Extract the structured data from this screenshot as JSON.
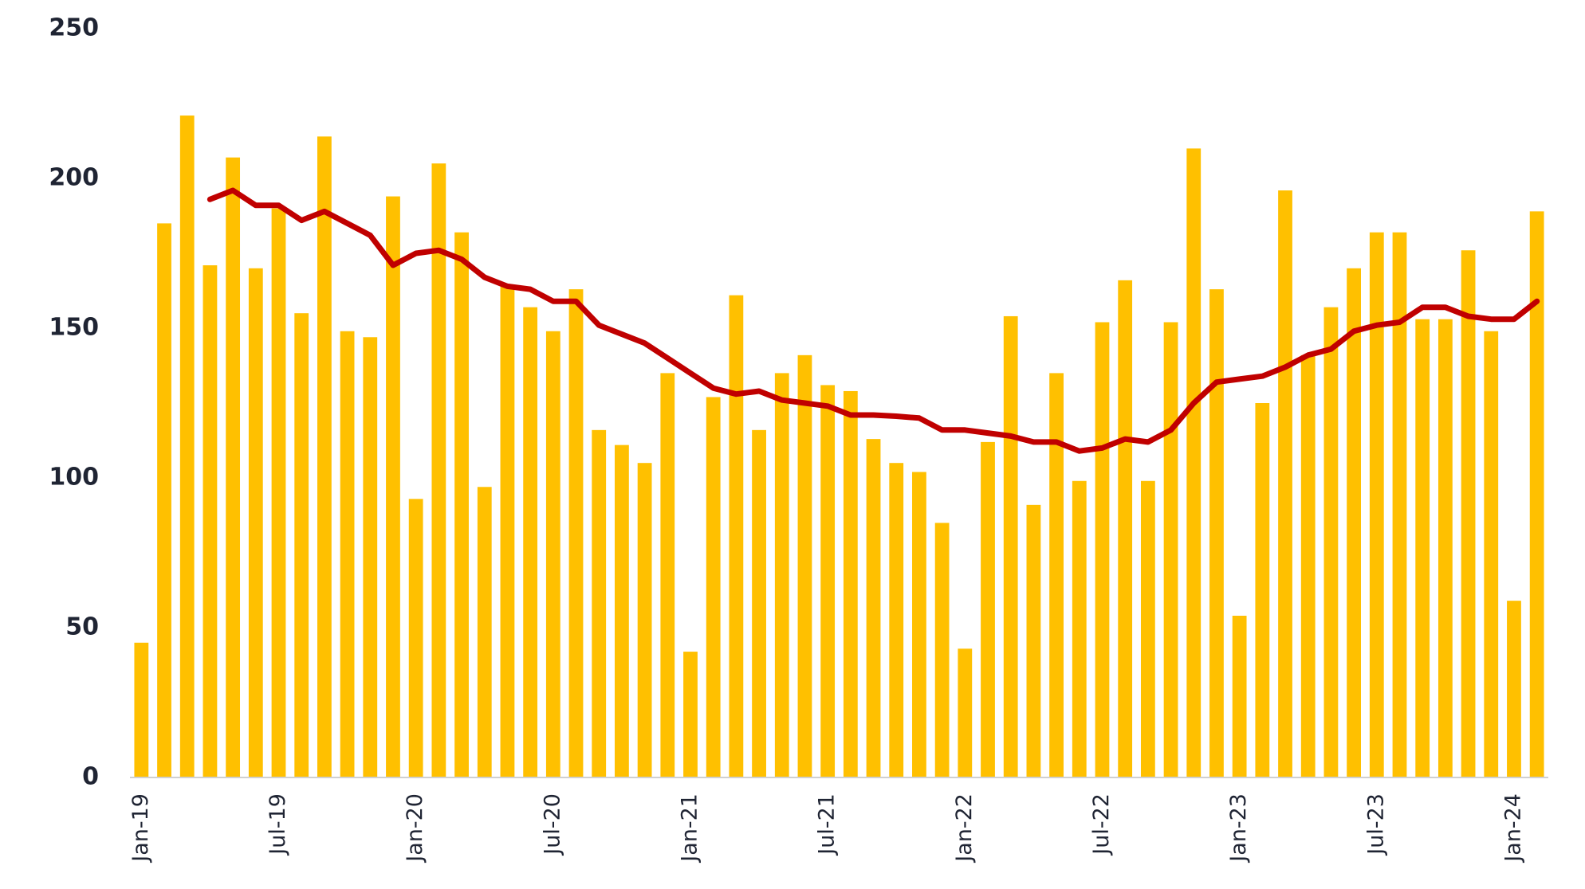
{
  "chart_data": {
    "type": "bar",
    "categories": [
      "Jan-19",
      null,
      null,
      null,
      null,
      null,
      "Jul-19",
      null,
      null,
      null,
      null,
      null,
      "Jan-20",
      null,
      null,
      null,
      null,
      null,
      "Jul-20",
      null,
      null,
      null,
      null,
      null,
      "Jan-21",
      null,
      null,
      null,
      null,
      null,
      "Jul-21",
      null,
      null,
      null,
      null,
      null,
      "Jan-22",
      null,
      null,
      null,
      null,
      null,
      "Jul-22",
      null,
      null,
      null,
      null,
      null,
      "Jan-23",
      null,
      null,
      null,
      null,
      null,
      "Jul-23",
      null,
      null,
      null,
      null,
      null,
      "Jan-24",
      null
    ],
    "series": [
      {
        "type": "bar",
        "color": "#ffc000",
        "values": [
          45,
          185,
          221,
          171,
          207,
          170,
          190,
          155,
          214,
          149,
          147,
          194,
          93,
          205,
          182,
          97,
          164,
          157,
          149,
          163,
          116,
          111,
          105,
          135,
          42,
          127,
          161,
          116,
          135,
          141,
          131,
          129,
          113,
          105,
          102,
          85,
          43,
          112,
          154,
          91,
          135,
          99,
          152,
          166,
          99,
          152,
          210,
          163,
          54,
          125,
          196,
          141,
          157,
          170,
          182,
          182,
          153,
          153,
          176,
          149,
          59,
          189
        ]
      },
      {
        "type": "line",
        "color": "#c00000",
        "values": [
          null,
          null,
          null,
          193,
          196,
          191,
          191,
          186,
          189,
          185,
          181,
          171,
          175,
          176,
          173,
          167,
          164,
          163,
          159,
          159,
          151,
          148,
          145,
          140,
          135,
          130,
          128,
          129,
          126,
          125,
          124,
          121,
          121,
          120.6,
          120,
          116,
          116,
          115,
          114,
          112,
          112,
          109,
          110,
          113,
          112,
          116,
          125,
          132,
          133,
          134,
          137,
          141,
          143,
          149,
          151,
          152,
          157,
          157,
          154,
          153,
          153,
          159
        ]
      }
    ],
    "ylim": [
      0,
      250
    ],
    "yticks": [
      0,
      50,
      100,
      150,
      200,
      250
    ],
    "grid": false
  }
}
